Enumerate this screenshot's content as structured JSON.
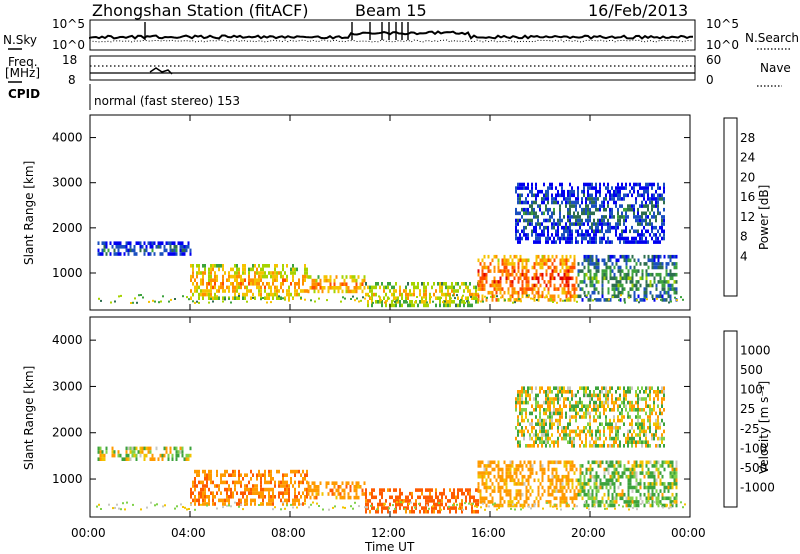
{
  "header": {
    "station": "Zhongshan Station (fitACF)",
    "beam": "Beam 15",
    "date": "16/Feb/2013"
  },
  "strips": {
    "nsky_label": "N.Sky",
    "nsky_ticks": [
      "10^5",
      "10^0"
    ],
    "nsearch_label": "N.Search",
    "nsearch_ticks": [
      "10^5",
      "10^0"
    ],
    "freq_label_1": "Freq.",
    "freq_label_2": "[MHz]",
    "freq_ticks": [
      "18",
      "8"
    ],
    "nave_label": "Nave",
    "nave_ticks": [
      "60",
      "0"
    ],
    "cpid_label": "CPID",
    "cpid_text": "normal (fast stereo) 153"
  },
  "panels": {
    "ylabel": "Slant Range [km]",
    "yticks": [
      "4000",
      "3000",
      "2000",
      "1000"
    ],
    "xticks": [
      "00:00",
      "04:00",
      "08:00",
      "12:00",
      "16:00",
      "20:00",
      "00:00"
    ],
    "xlabel": "Time UT"
  },
  "power_scale": {
    "label": "Power [dB]",
    "ticks": [
      "28",
      "24",
      "20",
      "16",
      "12",
      "8",
      "4"
    ],
    "colors": [
      "#e00000",
      "#ff4a00",
      "#ff8f00",
      "#f5c300",
      "#a6d300",
      "#3ca33c",
      "#2d6e4f",
      "#1a4fc0",
      "#0000f0"
    ]
  },
  "velocity_scale": {
    "label": "Velocity [m s⁻¹]",
    "ticks": [
      "1000",
      "500",
      "100",
      "25",
      "-25",
      "-100",
      "-500",
      "-1000"
    ],
    "colors": [
      "#1a3fc0",
      "#2d6e4f",
      "#3ca33c",
      "#7fd14a",
      "#c8c8c0",
      "#f2c400",
      "#ff9a00",
      "#ff5a00",
      "#e00000"
    ]
  },
  "chart_data": [
    {
      "type": "heatmap",
      "title": "Power",
      "xlabel": "Time UT",
      "ylabel": "Slant Range [km]",
      "xlim": [
        "00:00",
        "24:00"
      ],
      "ylim": [
        180,
        4500
      ],
      "colorbar": {
        "label": "Power [dB]",
        "ticks": [
          28,
          24,
          20,
          16,
          12,
          8,
          4
        ]
      },
      "echo_regions": [
        {
          "t_start": 0.3,
          "t_end": 4.0,
          "range_min": 1400,
          "range_max": 1700,
          "power_db": 6
        },
        {
          "t_start": 4.0,
          "t_end": 8.7,
          "range_min": 450,
          "range_max": 1200,
          "power_db": 20
        },
        {
          "t_start": 8.7,
          "t_end": 11.0,
          "range_min": 600,
          "range_max": 950,
          "power_db": 22
        },
        {
          "t_start": 11.0,
          "t_end": 15.5,
          "range_min": 300,
          "range_max": 800,
          "power_db": 18
        },
        {
          "t_start": 15.5,
          "t_end": 19.5,
          "range_min": 400,
          "range_max": 1400,
          "power_db": 24
        },
        {
          "t_start": 19.5,
          "t_end": 23.5,
          "range_min": 400,
          "range_max": 1400,
          "power_db": 10
        },
        {
          "t_start": 17.0,
          "t_end": 23.0,
          "range_min": 1700,
          "range_max": 3000,
          "power_db": 6
        }
      ]
    },
    {
      "type": "heatmap",
      "title": "Velocity",
      "xlabel": "Time UT",
      "ylabel": "Slant Range [km]",
      "xlim": [
        "00:00",
        "24:00"
      ],
      "ylim": [
        180,
        4500
      ],
      "colorbar": {
        "label": "Velocity [m s⁻¹]",
        "ticks": [
          1000,
          500,
          100,
          25,
          -25,
          -100,
          -500,
          -1000
        ]
      },
      "echo_regions": [
        {
          "t_start": 0.3,
          "t_end": 4.0,
          "range_min": 1400,
          "range_max": 1700,
          "velocity": 0
        },
        {
          "t_start": 4.0,
          "t_end": 8.7,
          "range_min": 450,
          "range_max": 1200,
          "velocity": -250
        },
        {
          "t_start": 8.7,
          "t_end": 11.0,
          "range_min": 600,
          "range_max": 950,
          "velocity": -200
        },
        {
          "t_start": 11.0,
          "t_end": 15.5,
          "range_min": 300,
          "range_max": 800,
          "velocity": -400
        },
        {
          "t_start": 15.5,
          "t_end": 19.5,
          "range_min": 400,
          "range_max": 1400,
          "velocity": -150
        },
        {
          "t_start": 19.5,
          "t_end": 23.5,
          "range_min": 400,
          "range_max": 1400,
          "velocity": 60
        },
        {
          "t_start": 17.0,
          "t_end": 23.0,
          "range_min": 1700,
          "range_max": 3000,
          "velocity": 0
        }
      ]
    }
  ]
}
